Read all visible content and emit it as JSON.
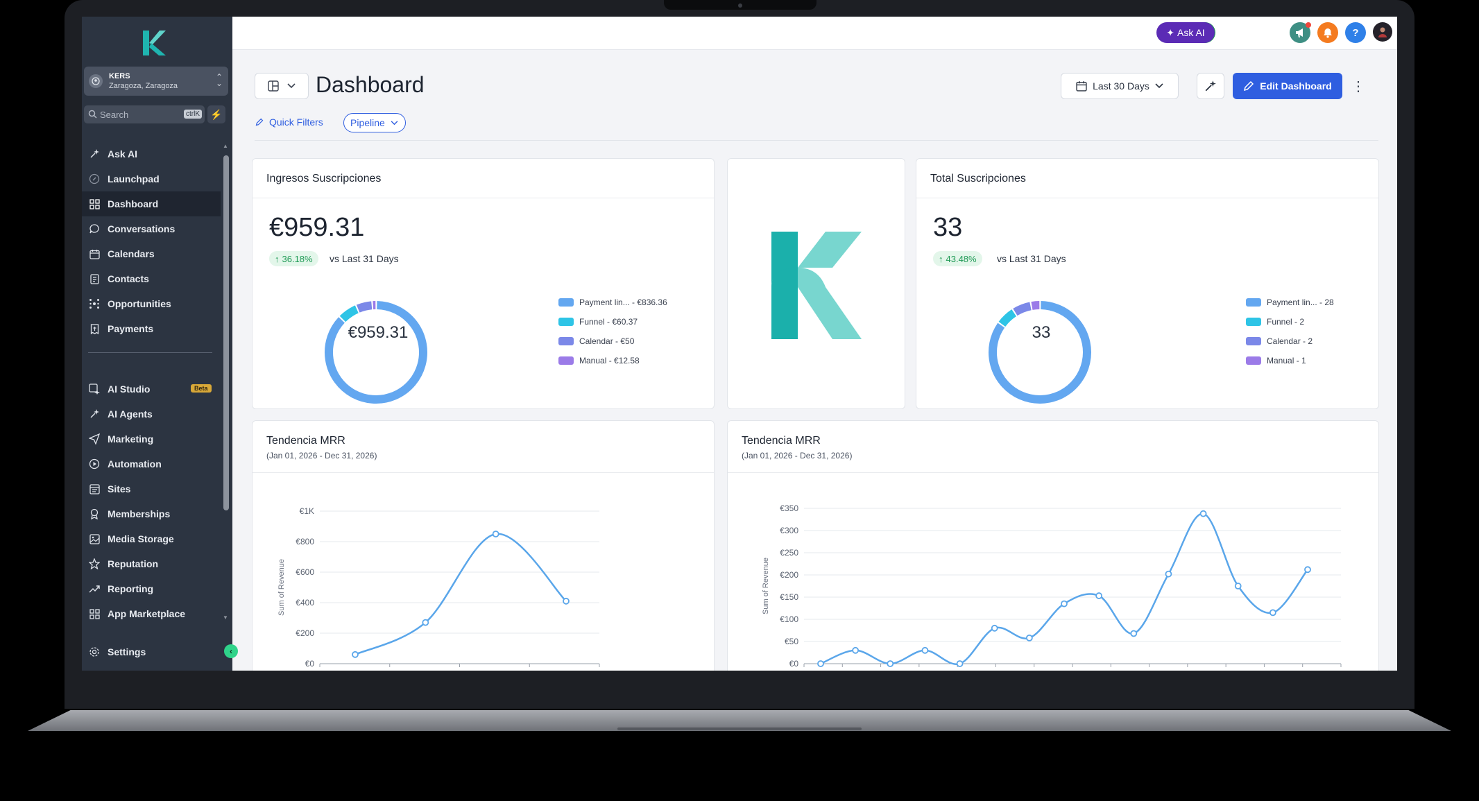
{
  "account": {
    "name": "KERS",
    "location": "Zaragoza, Zaragoza"
  },
  "search": {
    "placeholder": "Search",
    "shortcut": "ctrlK"
  },
  "sidebar": {
    "items": [
      {
        "label": "Ask AI",
        "icon": "sparkle-icon"
      },
      {
        "label": "Launchpad",
        "icon": "rocket-icon"
      },
      {
        "label": "Dashboard",
        "icon": "grid-icon",
        "active": true
      },
      {
        "label": "Conversations",
        "icon": "chat-icon"
      },
      {
        "label": "Calendars",
        "icon": "calendar-icon"
      },
      {
        "label": "Contacts",
        "icon": "contacts-icon"
      },
      {
        "label": "Opportunities",
        "icon": "opportunities-icon"
      },
      {
        "label": "Payments",
        "icon": "payments-icon"
      }
    ],
    "items2": [
      {
        "label": "AI Studio",
        "icon": "ai-studio-icon",
        "badge": "Beta"
      },
      {
        "label": "AI Agents",
        "icon": "sparkle-icon"
      },
      {
        "label": "Marketing",
        "icon": "send-icon"
      },
      {
        "label": "Automation",
        "icon": "automation-icon"
      },
      {
        "label": "Sites",
        "icon": "sites-icon"
      },
      {
        "label": "Memberships",
        "icon": "award-icon"
      },
      {
        "label": "Media Storage",
        "icon": "image-icon"
      },
      {
        "label": "Reputation",
        "icon": "star-icon"
      },
      {
        "label": "Reporting",
        "icon": "trend-icon"
      },
      {
        "label": "App Marketplace",
        "icon": "apps-icon"
      }
    ],
    "settings_label": "Settings"
  },
  "topbar": {
    "ask_ai_label": "Ask AI",
    "help_label": "?"
  },
  "header": {
    "title": "Dashboard",
    "date_range": "Last 30 Days",
    "edit_label": "Edit Dashboard",
    "quick_filters": "Quick Filters",
    "pipeline": "Pipeline"
  },
  "cards": {
    "ingresos": {
      "title": "Ingresos Suscripciones",
      "value": "€959.31",
      "change": "36.18%",
      "vs": "vs Last 31 Days",
      "center": "€959.31",
      "legend": [
        "Payment lin... - €836.36",
        "Funnel - €60.37",
        "Calendar - €50",
        "Manual - €12.58"
      ]
    },
    "total": {
      "title": "Total Suscripciones",
      "value": "33",
      "change": "43.48%",
      "vs": "vs Last 31 Days",
      "center": "33",
      "legend": [
        "Payment lin... - 28",
        "Funnel - 2",
        "Calendar - 2",
        "Manual - 1"
      ]
    },
    "mrr1": {
      "title": "Tendencia MRR",
      "subtitle": "(Jan 01, 2026 - Dec 31, 2026)"
    },
    "mrr2": {
      "title": "Tendencia MRR",
      "subtitle": "(Jan 01, 2026 - Dec 31, 2026)"
    }
  },
  "colors": {
    "payment": "#63a7f0",
    "funnel": "#2ec4e6",
    "calendar": "#7b88e8",
    "manual": "#9b7be8",
    "line": "#5aa6ea",
    "accent": "#2f5ee0"
  },
  "chart_data": [
    {
      "type": "pie",
      "title": "Ingresos Suscripciones",
      "categories": [
        "Payment lin...",
        "Funnel",
        "Calendar",
        "Manual"
      ],
      "values": [
        836.36,
        60.37,
        50,
        12.58
      ]
    },
    {
      "type": "pie",
      "title": "Total Suscripciones",
      "categories": [
        "Payment lin...",
        "Funnel",
        "Calendar",
        "Manual"
      ],
      "values": [
        28,
        2,
        2,
        1
      ]
    },
    {
      "type": "line",
      "title": "Tendencia MRR",
      "subtitle": "(Jan 01, 2026 - Dec 31, 2026)",
      "ylabel": "Sum of Revenue",
      "yticks": [
        "€0",
        "€200",
        "€400",
        "€600",
        "€800",
        "€1K"
      ],
      "ylim": [
        0,
        1000
      ],
      "values": [
        60,
        270,
        850,
        410
      ]
    },
    {
      "type": "line",
      "title": "Tendencia MRR",
      "subtitle": "(Jan 01, 2026 - Dec 31, 2026)",
      "ylabel": "Sum of Revenue",
      "yticks": [
        "€0",
        "€50",
        "€100",
        "€150",
        "€200",
        "€250",
        "€300",
        "€350"
      ],
      "ylim": [
        0,
        350
      ],
      "values": [
        0,
        30,
        0,
        30,
        0,
        80,
        58,
        135,
        153,
        68,
        202,
        338,
        175,
        115,
        212
      ]
    }
  ]
}
